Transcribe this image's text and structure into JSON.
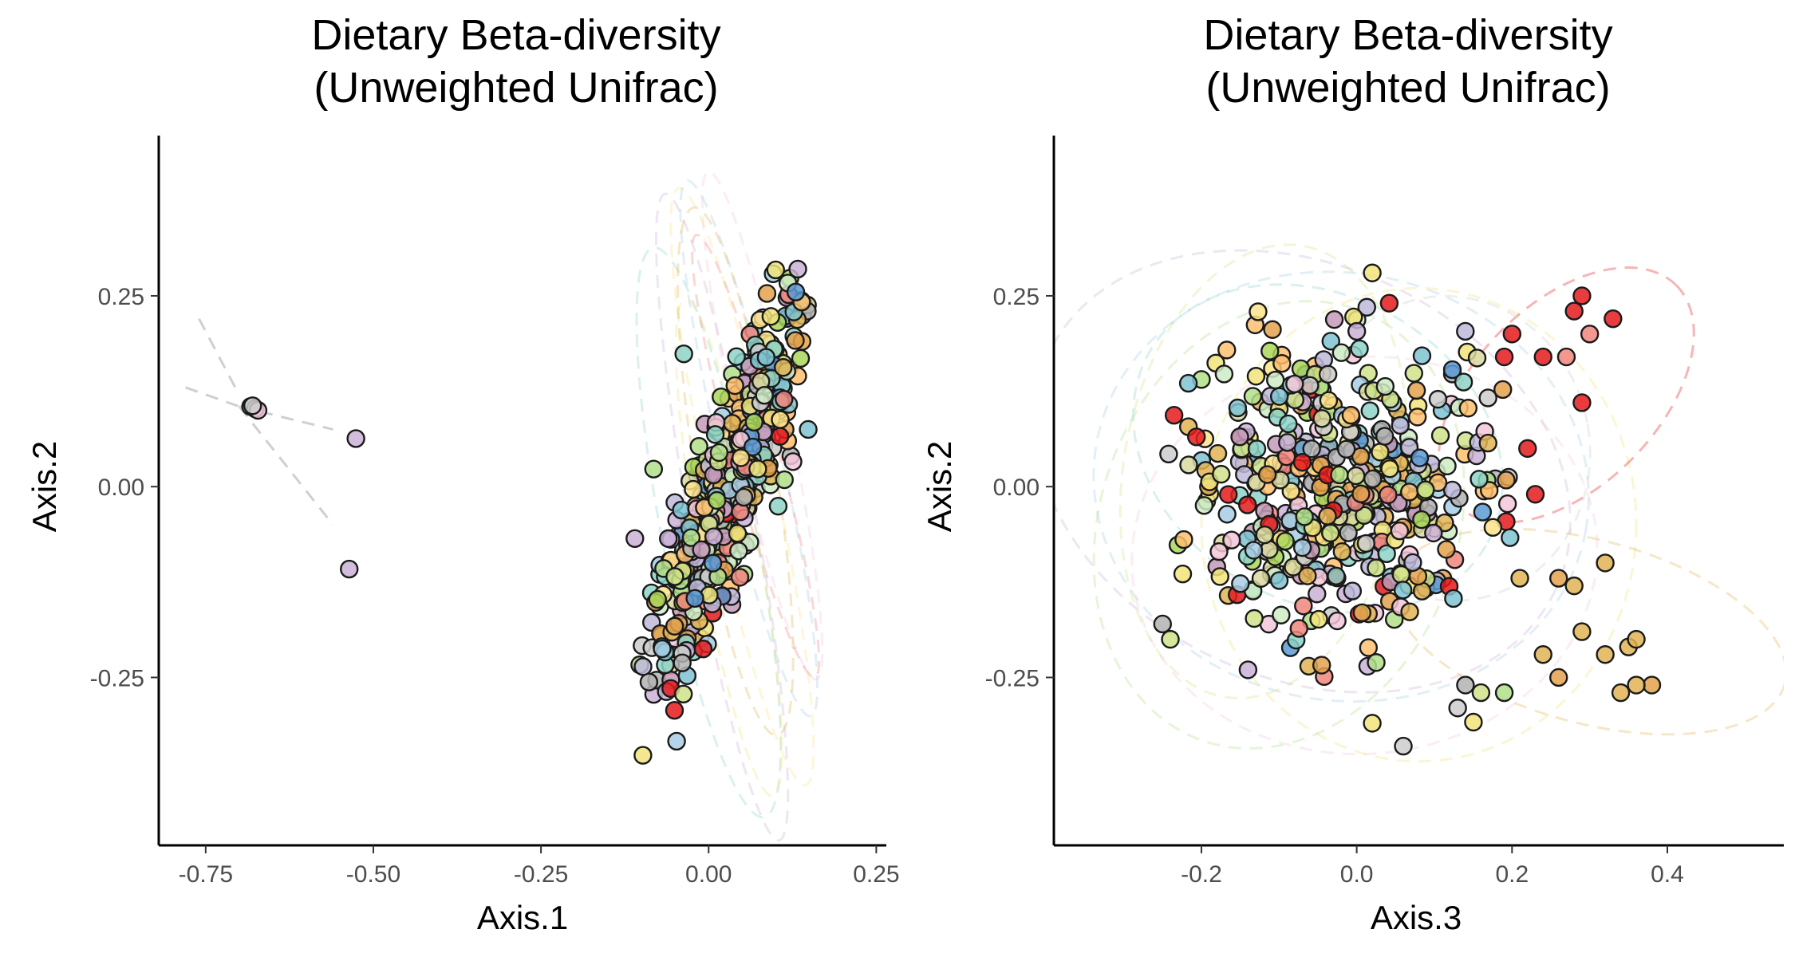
{
  "palette": [
    "#e41a1c",
    "#f0867e",
    "#a6cee3",
    "#7fc3d1",
    "#5b9bd5",
    "#b2df8a",
    "#a9d65a",
    "#cfe38a",
    "#f1e47a",
    "#fbe38a",
    "#e0b455",
    "#e3a14d",
    "#fdbf6f",
    "#cab2d6",
    "#c49ab9",
    "#f3c6d9",
    "#bebada",
    "#cccccc",
    "#b3b3b3",
    "#8dd3c7",
    "#ccebc5",
    "#d9d9a0"
  ],
  "chart_data": [
    {
      "type": "scatter",
      "title_line1": "Dietary Beta-diversity",
      "title_line2": "(Unweighted Unifrac)",
      "xlabel": "Axis.1",
      "ylabel": "Axis.2",
      "xlim": [
        -0.82,
        0.265
      ],
      "ylim": [
        -0.47,
        0.46
      ],
      "xticks": [
        -0.75,
        -0.5,
        -0.25,
        0.0,
        0.25
      ],
      "xtick_labels": [
        "-0.75",
        "-0.50",
        "-0.25",
        "0.00",
        "0.25"
      ],
      "yticks": [
        -0.25,
        0.0,
        0.25
      ],
      "ytick_labels": [
        "-0.25",
        "0.00",
        "0.25"
      ],
      "grid": false,
      "legend": "none",
      "cluster": {
        "count": 520,
        "mean": [
          0.03,
          0.0
        ],
        "principal_sd": 0.13,
        "minor_sd": 0.026,
        "angle_deg": 68,
        "x_range": [
          -0.14,
          0.15
        ],
        "y_range": [
          -0.36,
          0.29
        ]
      },
      "outliers": [
        {
          "x": -0.683,
          "y": 0.105,
          "color_index": 19
        },
        {
          "x": -0.676,
          "y": 0.102,
          "color_index": 13
        },
        {
          "x": -0.672,
          "y": 0.1,
          "color_index": 15
        },
        {
          "x": -0.68,
          "y": 0.106,
          "color_index": 17
        },
        {
          "x": -0.526,
          "y": 0.063,
          "color_index": 13
        },
        {
          "x": -0.536,
          "y": -0.108,
          "color_index": 13
        },
        {
          "x": -0.037,
          "y": 0.174,
          "color_index": 19
        },
        {
          "x": -0.082,
          "y": 0.023,
          "color_index": 5
        },
        {
          "x": -0.098,
          "y": -0.352,
          "color_index": 8
        },
        {
          "x": 0.13,
          "y": 0.255,
          "color_index": 4
        },
        {
          "x": 0.1,
          "y": 0.284,
          "color_index": 8
        },
        {
          "x": -0.11,
          "y": -0.068,
          "color_index": 13
        }
      ],
      "spokes": [
        {
          "x1": -0.76,
          "y1": 0.22,
          "x2": -0.7,
          "y2": 0.12
        },
        {
          "x1": -0.78,
          "y1": 0.13,
          "x2": -0.7,
          "y2": 0.105
        },
        {
          "x1": -0.7,
          "y1": 0.105,
          "x2": -0.56,
          "y2": 0.075
        },
        {
          "x1": -0.7,
          "y1": 0.105,
          "x2": -0.56,
          "y2": -0.05
        }
      ],
      "ellipses": [
        {
          "cx": 0.02,
          "cy": -0.04,
          "rx": 0.05,
          "ry": 0.43,
          "angle": -10,
          "color_index": 13
        },
        {
          "cx": 0.05,
          "cy": 0.0,
          "rx": 0.05,
          "ry": 0.4,
          "angle": -12,
          "color_index": 9
        },
        {
          "cx": 0.06,
          "cy": 0.05,
          "rx": 0.045,
          "ry": 0.36,
          "angle": -13,
          "color_index": 2
        },
        {
          "cx": 0.0,
          "cy": -0.06,
          "rx": 0.07,
          "ry": 0.38,
          "angle": -11,
          "color_index": 19
        },
        {
          "cx": 0.08,
          "cy": 0.08,
          "rx": 0.04,
          "ry": 0.34,
          "angle": -12,
          "color_index": 15
        },
        {
          "cx": 0.04,
          "cy": 0.02,
          "rx": 0.06,
          "ry": 0.35,
          "angle": -9,
          "color_index": 10
        },
        {
          "cx": 0.07,
          "cy": 0.04,
          "rx": 0.035,
          "ry": 0.3,
          "angle": -15,
          "color_index": 1
        },
        {
          "cx": 0.03,
          "cy": -0.08,
          "rx": 0.045,
          "ry": 0.33,
          "angle": -10,
          "color_index": 8
        }
      ]
    },
    {
      "type": "scatter",
      "title_line1": "Dietary Beta-diversity",
      "title_line2": "(Unweighted Unifrac)",
      "xlabel": "Axis.3",
      "ylabel": "Axis.2",
      "xlim": [
        -0.39,
        0.55
      ],
      "ylim": [
        -0.47,
        0.46
      ],
      "xticks": [
        -0.2,
        0.0,
        0.2,
        0.4
      ],
      "xtick_labels": [
        "-0.2",
        "0.0",
        "0.2",
        "0.4"
      ],
      "yticks": [
        -0.25,
        0.0,
        0.25
      ],
      "ytick_labels": [
        "-0.25",
        "0.00",
        "0.25"
      ],
      "grid": false,
      "legend": "none",
      "cluster": {
        "count": 470,
        "mean": [
          -0.02,
          0.0
        ],
        "principal_sd": 0.105,
        "minor_sd": 0.095,
        "angle_deg": 15,
        "x_range": [
          -0.25,
          0.2
        ],
        "y_range": [
          -0.31,
          0.26
        ]
      },
      "outliers": [
        {
          "x": 0.29,
          "y": 0.25,
          "color_index": 0
        },
        {
          "x": 0.28,
          "y": 0.23,
          "color_index": 0
        },
        {
          "x": 0.3,
          "y": 0.2,
          "color_index": 1
        },
        {
          "x": 0.33,
          "y": 0.22,
          "color_index": 0
        },
        {
          "x": 0.24,
          "y": 0.17,
          "color_index": 0
        },
        {
          "x": 0.27,
          "y": 0.17,
          "color_index": 1
        },
        {
          "x": 0.2,
          "y": 0.2,
          "color_index": 0
        },
        {
          "x": 0.19,
          "y": 0.17,
          "color_index": 0
        },
        {
          "x": 0.29,
          "y": 0.11,
          "color_index": 0
        },
        {
          "x": 0.22,
          "y": 0.05,
          "color_index": 0
        },
        {
          "x": 0.23,
          "y": -0.01,
          "color_index": 0
        },
        {
          "x": 0.32,
          "y": -0.1,
          "color_index": 10
        },
        {
          "x": 0.29,
          "y": -0.19,
          "color_index": 10
        },
        {
          "x": 0.24,
          "y": -0.22,
          "color_index": 10
        },
        {
          "x": 0.26,
          "y": -0.25,
          "color_index": 11
        },
        {
          "x": 0.32,
          "y": -0.22,
          "color_index": 10
        },
        {
          "x": 0.35,
          "y": -0.21,
          "color_index": 10
        },
        {
          "x": 0.36,
          "y": -0.2,
          "color_index": 10
        },
        {
          "x": 0.38,
          "y": -0.26,
          "color_index": 11
        },
        {
          "x": 0.36,
          "y": -0.26,
          "color_index": 10
        },
        {
          "x": 0.34,
          "y": -0.27,
          "color_index": 10
        },
        {
          "x": 0.28,
          "y": -0.13,
          "color_index": 10
        },
        {
          "x": 0.26,
          "y": -0.12,
          "color_index": 11
        },
        {
          "x": 0.21,
          "y": -0.12,
          "color_index": 10
        },
        {
          "x": 0.13,
          "y": -0.29,
          "color_index": 17
        },
        {
          "x": 0.16,
          "y": -0.27,
          "color_index": 7
        },
        {
          "x": 0.19,
          "y": -0.27,
          "color_index": 5
        },
        {
          "x": 0.14,
          "y": -0.26,
          "color_index": 18
        },
        {
          "x": 0.02,
          "y": -0.31,
          "color_index": 8
        },
        {
          "x": 0.06,
          "y": -0.34,
          "color_index": 17
        },
        {
          "x": 0.02,
          "y": 0.28,
          "color_index": 8
        },
        {
          "x": -0.24,
          "y": -0.2,
          "color_index": 7
        },
        {
          "x": -0.25,
          "y": -0.18,
          "color_index": 18
        },
        {
          "x": -0.14,
          "y": -0.24,
          "color_index": 13
        }
      ],
      "ellipses": [
        {
          "cx": -0.07,
          "cy": 0.02,
          "rx": 0.36,
          "ry": 0.27,
          "angle": 25,
          "color_index": 13
        },
        {
          "cx": -0.02,
          "cy": 0.0,
          "rx": 0.32,
          "ry": 0.28,
          "angle": 10,
          "color_index": 2
        },
        {
          "cx": 0.08,
          "cy": -0.05,
          "rx": 0.28,
          "ry": 0.31,
          "angle": 0,
          "color_index": 8
        },
        {
          "cx": 0.27,
          "cy": 0.12,
          "rx": 0.2,
          "ry": 0.12,
          "angle": -45,
          "color_index": 0
        },
        {
          "cx": 0.3,
          "cy": -0.19,
          "rx": 0.26,
          "ry": 0.12,
          "angle": 15,
          "color_index": 10
        },
        {
          "cx": -0.1,
          "cy": -0.05,
          "rx": 0.23,
          "ry": 0.3,
          "angle": 20,
          "color_index": 5
        },
        {
          "cx": 0.01,
          "cy": -0.09,
          "rx": 0.3,
          "ry": 0.26,
          "angle": -5,
          "color_index": 15
        },
        {
          "cx": -0.05,
          "cy": 0.05,
          "rx": 0.25,
          "ry": 0.2,
          "angle": 30,
          "color_index": 19
        },
        {
          "cx": 0.12,
          "cy": 0.05,
          "rx": 0.18,
          "ry": 0.2,
          "angle": -10,
          "color_index": 17
        },
        {
          "cx": -0.12,
          "cy": 0.02,
          "rx": 0.18,
          "ry": 0.3,
          "angle": 10,
          "color_index": 7
        }
      ]
    }
  ]
}
